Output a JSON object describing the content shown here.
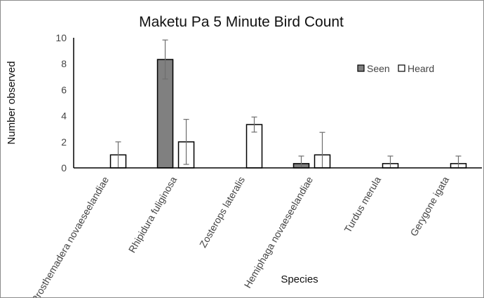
{
  "chart_data": {
    "type": "bar",
    "title": "Maketu Pa 5 Minute Bird Count",
    "xlabel": "Species",
    "ylabel": "Number observed",
    "ylim": [
      0,
      10
    ],
    "yticks": [
      0,
      2,
      4,
      6,
      8,
      10
    ],
    "grid": false,
    "legend_position": "top-right",
    "categories": [
      "Prosthemadera novaeseelandiae",
      "Rhipidura fuliginosa",
      "Zosterops lateralis",
      "Hemiphaga novaeseelandiae",
      "Turdus merula",
      "Gerygone igata"
    ],
    "series": [
      {
        "name": "Seen",
        "color": "#808080",
        "values": [
          0,
          8.33,
          0,
          0.33,
          0,
          0
        ],
        "error": [
          0,
          1.5,
          0,
          0.58,
          0,
          0
        ]
      },
      {
        "name": "Heard",
        "color": "#ffffff",
        "values": [
          1,
          2,
          3.33,
          1,
          0.33,
          0.33
        ],
        "error": [
          1,
          1.73,
          0.58,
          1.73,
          0.58,
          0.58
        ]
      }
    ]
  }
}
